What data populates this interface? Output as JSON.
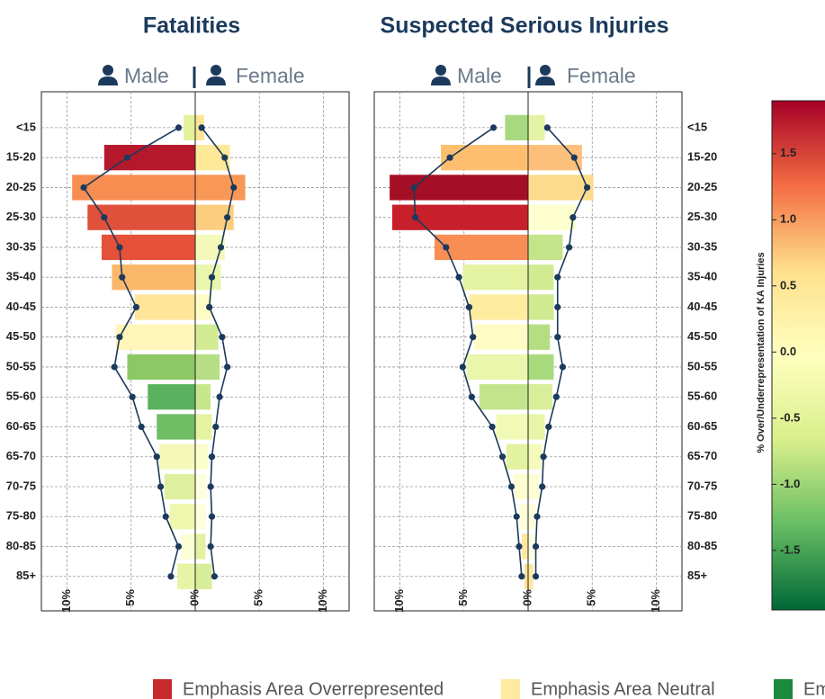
{
  "chart_data": [
    {
      "type": "pyramid",
      "title": "Fatalities",
      "categories": [
        "<15",
        "15-20",
        "20-25",
        "25-30",
        "30-35",
        "35-40",
        "40-45",
        "45-50",
        "50-55",
        "55-60",
        "60-65",
        "65-70",
        "70-75",
        "75-80",
        "80-85",
        "85+"
      ],
      "series": [
        {
          "name": "Male",
          "values": [
            0.9,
            7.1,
            9.6,
            8.4,
            7.3,
            6.5,
            4.7,
            6.2,
            5.3,
            3.7,
            3.0,
            2.8,
            2.4,
            2.0,
            1.1,
            1.4
          ],
          "colors": [
            "#e4f29a",
            "#b5182b",
            "#f88d52",
            "#e0503a",
            "#e55039",
            "#fbb769",
            "#fee597",
            "#fff5b9",
            "#8cc866",
            "#5ab25f",
            "#6fbe63",
            "#f4f9b9",
            "#def09f",
            "#edf7ae",
            "#fcfed5",
            "#e7f4a5"
          ],
          "line_values": [
            1.3,
            5.3,
            8.7,
            7.1,
            5.9,
            5.7,
            4.6,
            5.9,
            6.3,
            4.9,
            4.2,
            3.0,
            2.7,
            2.3,
            1.3,
            1.9
          ],
          "line_color": "#1b3a5c"
        },
        {
          "name": "Female",
          "values": [
            0.7,
            2.7,
            3.9,
            3.0,
            2.3,
            2.0,
            1.3,
            1.8,
            1.9,
            1.2,
            1.3,
            1.0,
            0.9,
            0.8,
            0.8,
            1.3
          ],
          "colors": [
            "#fde597",
            "#fee999",
            "#f99757",
            "#fdcd7f",
            "#f4f9ba",
            "#eaf6ab",
            "#fefcc6",
            "#d2eb93",
            "#b6de85",
            "#c8e68c",
            "#e4f3a2",
            "#fbfdcb",
            "#fdfedd",
            "#fefddc",
            "#e3f2a0",
            "#d7ed97"
          ],
          "line_values": [
            0.5,
            2.3,
            3.0,
            2.5,
            2.0,
            1.3,
            1.1,
            2.1,
            2.5,
            1.9,
            1.6,
            1.3,
            1.2,
            1.3,
            1.2,
            1.5
          ],
          "line_color": "#1b3a5c"
        }
      ],
      "xlim": [
        -12,
        12
      ],
      "xticks": [
        {
          "value": -10,
          "label": "10%"
        },
        {
          "value": -5,
          "label": "5%"
        },
        {
          "value": 0,
          "label": "0%"
        },
        {
          "value": 5,
          "label": "5%"
        },
        {
          "value": 10,
          "label": "10%"
        }
      ],
      "grid": true
    },
    {
      "type": "pyramid",
      "title": "Suspected Serious Injuries",
      "categories": [
        "<15",
        "15-20",
        "20-25",
        "25-30",
        "30-35",
        "35-40",
        "40-45",
        "45-50",
        "50-55",
        "55-60",
        "60-65",
        "65-70",
        "70-75",
        "75-80",
        "80-85",
        "85+"
      ],
      "series": [
        {
          "name": "Male",
          "values": [
            1.8,
            6.8,
            10.8,
            10.6,
            7.3,
            5.1,
            4.6,
            4.2,
            4.8,
            3.8,
            2.5,
            1.7,
            1.1,
            0.7,
            0.5,
            0.3
          ],
          "colors": [
            "#a8d97f",
            "#fdbf6f",
            "#a50f26",
            "#c7202b",
            "#f88e53",
            "#e4f3a2",
            "#feec9f",
            "#fffbc4",
            "#eaf6ab",
            "#c3e48a",
            "#f1f9b6",
            "#e3f2a0",
            "#fcfecf",
            "#fefed9",
            "#fee8a0",
            "#fde39a"
          ],
          "line_values": [
            2.7,
            6.1,
            8.9,
            8.8,
            6.4,
            5.4,
            4.6,
            4.3,
            5.1,
            4.4,
            2.8,
            2.0,
            1.3,
            0.9,
            0.7,
            0.5
          ],
          "line_color": "#1b3a5c"
        },
        {
          "name": "Female",
          "values": [
            1.3,
            4.2,
            5.1,
            3.7,
            2.7,
            2.0,
            2.0,
            1.7,
            2.0,
            1.9,
            1.3,
            1.1,
            0.9,
            0.6,
            0.6,
            0.4
          ],
          "colors": [
            "#e4f3a3",
            "#fdc07a",
            "#fddb8c",
            "#feffce",
            "#c4e48a",
            "#d2eb93",
            "#cfea91",
            "#b5de83",
            "#a9da7e",
            "#d8ee9a",
            "#e8f5a8",
            "#f4fabb",
            "#fdfed6",
            "#fefedd",
            "#fdfee0",
            "#fde8a0"
          ],
          "line_values": [
            1.5,
            3.6,
            4.6,
            3.5,
            3.2,
            2.3,
            2.3,
            2.3,
            2.7,
            2.2,
            1.6,
            1.2,
            1.1,
            0.7,
            0.6,
            0.6
          ],
          "line_color": "#1b3a5c"
        }
      ],
      "xlim": [
        -12,
        12
      ],
      "xticks": [
        {
          "value": -10,
          "label": "10%"
        },
        {
          "value": -5,
          "label": "5%"
        },
        {
          "value": 0,
          "label": "0%"
        },
        {
          "value": 5,
          "label": "5%"
        },
        {
          "value": 10,
          "label": "10%"
        }
      ],
      "grid": true
    }
  ],
  "colorbar": {
    "label": "% Over/Underrepresentation of KA Injuries",
    "lim": [
      -1.95,
      1.9
    ],
    "ticks": [
      1.5,
      {
        "value": 1,
        "label": "1.0"
      },
      0.5,
      {
        "value": 0,
        "label": "0.0"
      },
      -0.5,
      {
        "value": -1,
        "label": "-1.0"
      },
      -1.5
    ],
    "colors": [
      "#006837",
      "#66bd63",
      "#d9ef8b",
      "#ffffbf",
      "#fee08b",
      "#f46d43",
      "#a50026"
    ]
  },
  "legend": [
    {
      "name": "Emphasis Area Overrepresented",
      "color": "#c62a2e"
    },
    {
      "name": "Emphasis Area Neutral",
      "color": "#feeaa0"
    },
    {
      "name": "Emphasis Area Underrepresented",
      "color": "#1a8a3c"
    }
  ]
}
